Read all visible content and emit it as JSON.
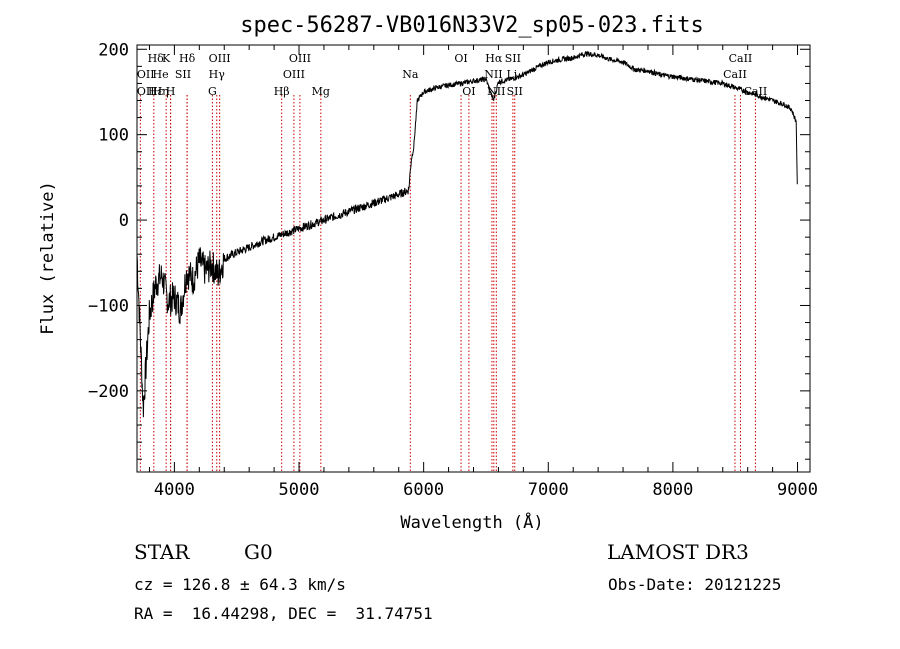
{
  "chart_data": {
    "type": "line",
    "title": "spec-56287-VB016N33V2_sp05-023.fits",
    "xlabel": "Wavelength (Å)",
    "ylabel": "Flux (relative)",
    "xlim": [
      3700,
      9100
    ],
    "ylim": [
      -295,
      205
    ],
    "xticks": [
      4000,
      5000,
      6000,
      7000,
      8000,
      9000
    ],
    "yticks": [
      -200,
      -100,
      0,
      100,
      200
    ],
    "series": [
      {
        "name": "flux",
        "x": [
          3700,
          3750,
          3800,
          3850,
          3900,
          3950,
          4000,
          4050,
          4100,
          4150,
          4200,
          4250,
          4300,
          4350,
          4400,
          4500,
          4600,
          4700,
          4800,
          4900,
          5000,
          5100,
          5200,
          5300,
          5400,
          5500,
          5600,
          5700,
          5800,
          5880,
          5900,
          5920,
          5950,
          6000,
          6100,
          6200,
          6300,
          6400,
          6500,
          6560,
          6600,
          6700,
          6800,
          6900,
          7000,
          7100,
          7200,
          7300,
          7400,
          7500,
          7600,
          7700,
          7800,
          7900,
          8000,
          8100,
          8200,
          8300,
          8400,
          8500,
          8600,
          8700,
          8800,
          8900,
          8950,
          8990,
          9000
        ],
        "y": [
          -40,
          -220,
          -110,
          -75,
          -65,
          -95,
          -90,
          -105,
          -60,
          -70,
          -48,
          -60,
          -52,
          -65,
          -45,
          -38,
          -32,
          -25,
          -20,
          -15,
          -10,
          -5,
          0,
          5,
          10,
          15,
          20,
          25,
          30,
          35,
          70,
          85,
          140,
          150,
          155,
          158,
          160,
          163,
          165,
          140,
          162,
          165,
          170,
          178,
          185,
          188,
          190,
          195,
          193,
          188,
          185,
          176,
          175,
          170,
          168,
          166,
          164,
          162,
          160,
          155,
          150,
          145,
          140,
          135,
          130,
          115,
          20
        ]
      }
    ],
    "lines": [
      {
        "name": "Hδ",
        "x": 4102
      },
      {
        "name": "K",
        "x": 3934
      },
      {
        "name": "H",
        "x": 3969
      },
      {
        "name": "OII",
        "x": 3727
      },
      {
        "name": "Hε",
        "x": 3970
      },
      {
        "name": "Hη",
        "x": 3835
      },
      {
        "name": "Hδ",
        "x": 4102
      },
      {
        "name": "OIII",
        "x": 4363
      },
      {
        "name": "Hγ",
        "x": 4340
      },
      {
        "name": "G",
        "x": 4305
      },
      {
        "name": "Hβ",
        "x": 4861
      },
      {
        "name": "OIII",
        "x": 4959
      },
      {
        "name": "OIII",
        "x": 5007
      },
      {
        "name": "Mg",
        "x": 5175
      },
      {
        "name": "Na",
        "x": 5893
      },
      {
        "name": "OI",
        "x": 6300
      },
      {
        "name": "OI",
        "x": 6363
      },
      {
        "name": "Hα",
        "x": 6563
      },
      {
        "name": "NII",
        "x": 6548
      },
      {
        "name": "NII",
        "x": 6583
      },
      {
        "name": "SII",
        "x": 6716
      },
      {
        "name": "SII",
        "x": 6731
      },
      {
        "name": "CaII",
        "x": 8498
      },
      {
        "name": "CaII",
        "x": 8542
      },
      {
        "name": "CaII",
        "x": 8662
      }
    ]
  },
  "labels": {
    "row1": [
      {
        "text": "Hδ",
        "wl": 3850
      },
      {
        "text": "K",
        "wl": 3934
      },
      {
        "text": "Hδ",
        "wl": 4102
      },
      {
        "text": "OIII",
        "wl": 4363
      },
      {
        "text": "OIII",
        "wl": 5007
      },
      {
        "text": "OI",
        "wl": 6300
      },
      {
        "text": "Hα",
        "wl": 6563
      },
      {
        "text": "SII",
        "wl": 6716
      },
      {
        "text": "CaII",
        "wl": 8542
      }
    ],
    "row2": [
      {
        "text": "OII",
        "wl": 3770
      },
      {
        "text": "He",
        "wl": 3889
      },
      {
        "text": "SII",
        "wl": 4069
      },
      {
        "text": "Hγ",
        "wl": 4340
      },
      {
        "text": "OIII",
        "wl": 4959
      },
      {
        "text": "Na",
        "wl": 5893
      },
      {
        "text": "NII",
        "wl": 6560
      },
      {
        "text": "Li",
        "wl": 6708
      },
      {
        "text": "CaII",
        "wl": 8498
      }
    ],
    "row3": [
      {
        "text": "OII",
        "wl": 3770
      },
      {
        "text": "Hε",
        "wl": 3850
      },
      {
        "text": "Hη",
        "wl": 3890
      },
      {
        "text": "H",
        "wl": 3969
      },
      {
        "text": "G",
        "wl": 4305
      },
      {
        "text": "Hβ",
        "wl": 4861
      },
      {
        "text": "Mg",
        "wl": 5175
      },
      {
        "text": "OI",
        "wl": 6363
      },
      {
        "text": "NII",
        "wl": 6583
      },
      {
        "text": "SII",
        "wl": 6731
      },
      {
        "text": "CaII",
        "wl": 8662
      }
    ]
  },
  "info": {
    "class": "STAR",
    "subclass": "G0",
    "survey": "LAMOST DR3",
    "cz": "cz = 126.8 ± 64.3 km/s",
    "obsdate": "Obs-Date: 20121225",
    "radec": "RA =  16.44298, DEC =  31.74751"
  }
}
